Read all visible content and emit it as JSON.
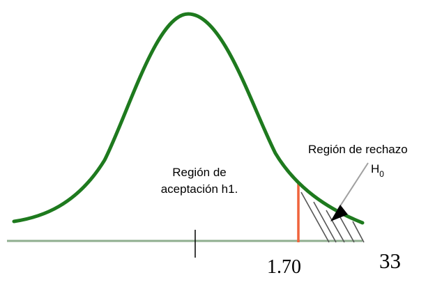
{
  "labels": {
    "acceptance_line1": "Región de",
    "acceptance_line2": "aceptación h1.",
    "rejection": "Región de rechazo",
    "h0_letter": "H",
    "h0_sub": "0",
    "critical_value": "1.70",
    "page_number": "33"
  },
  "colors": {
    "curve": "#1e7a1e",
    "baseline": "#8fae8f",
    "critical_line": "#f0643c",
    "hatch": "#555555",
    "arrow": "#000000",
    "arrow_line": "#a0a0a0"
  }
}
